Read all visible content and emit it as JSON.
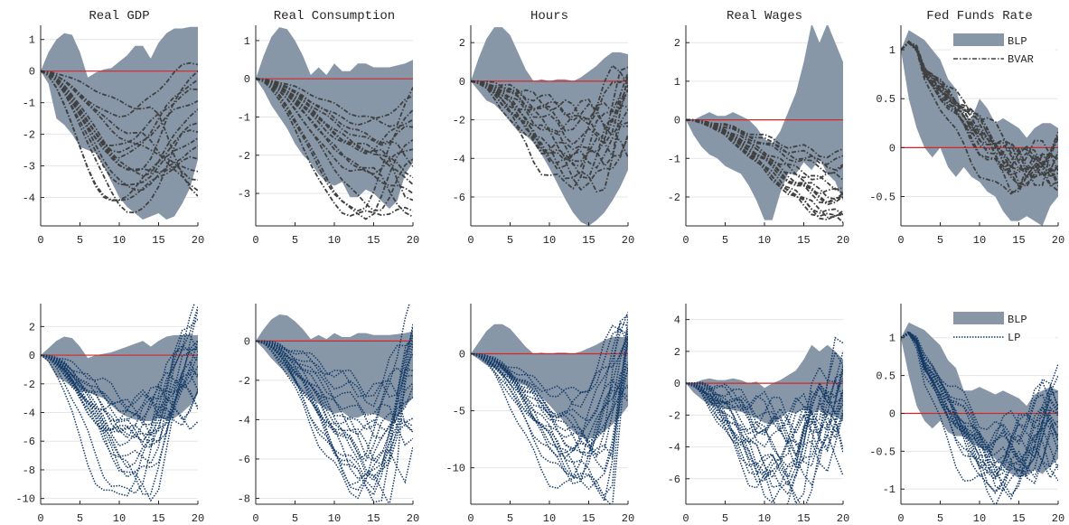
{
  "colors": {
    "band": "#8797a8",
    "top_lines": "#404040",
    "bottom_lines": "#153a66",
    "zero_line": "#d62728",
    "grid": "#e6e6e6",
    "axis": "#262626"
  },
  "chart_data": [
    {
      "type": "line",
      "row": "top",
      "title": "Real GDP",
      "x": [
        0,
        1,
        2,
        3,
        4,
        5,
        6,
        7,
        8,
        9,
        10,
        11,
        12,
        13,
        14,
        15,
        16,
        17,
        18,
        19,
        20
      ],
      "xlim": [
        0,
        20
      ],
      "ylim": [
        -4.9,
        1.45
      ],
      "xticks": [
        0,
        5,
        10,
        15,
        20
      ],
      "yticks": [
        1,
        0,
        -1,
        -2,
        -3,
        -4
      ],
      "ytick_labels": [
        "1",
        "0",
        "-1",
        "-2",
        "-3",
        "-4"
      ],
      "grid": "horizontal",
      "band": {
        "upper": [
          0,
          0.6,
          1.0,
          1.2,
          1.15,
          0.6,
          -0.2,
          -0.05,
          0.05,
          0.1,
          0.3,
          0.5,
          0.8,
          0.8,
          0.4,
          0.9,
          1.2,
          1.35,
          1.35,
          1.4,
          1.4
        ],
        "lower": [
          0,
          -0.4,
          -1.5,
          -1.7,
          -2.0,
          -2.4,
          -2.5,
          -2.6,
          -3.0,
          -3.5,
          -4.0,
          -4.3,
          -4.5,
          -4.7,
          -4.6,
          -4.5,
          -4.7,
          -4.6,
          -4.2,
          -3.7,
          -2.8
        ]
      },
      "lines": {
        "n": 15,
        "end_min": -4.0,
        "end_max": 0.3,
        "trough": -4.8,
        "trough_x": 11,
        "amp": 0.1
      }
    },
    {
      "type": "line",
      "row": "top",
      "title": "Real Consumption",
      "x": [
        0,
        1,
        2,
        3,
        4,
        5,
        6,
        7,
        8,
        9,
        10,
        11,
        12,
        13,
        14,
        15,
        16,
        17,
        18,
        19,
        20
      ],
      "xlim": [
        0,
        20
      ],
      "ylim": [
        -3.85,
        1.4
      ],
      "xticks": [
        0,
        5,
        10,
        15,
        20
      ],
      "yticks": [
        1,
        0,
        -1,
        -2,
        -3
      ],
      "ytick_labels": [
        "1",
        "0",
        "-1",
        "-2",
        "-3"
      ],
      "grid": "horizontal",
      "band": {
        "upper": [
          0,
          0.6,
          1.1,
          1.35,
          1.3,
          1.0,
          0.6,
          0.1,
          0.3,
          0.1,
          0.4,
          0.2,
          0.2,
          0.4,
          0.4,
          0.3,
          0.3,
          0.3,
          0.35,
          0.4,
          0.5
        ],
        "lower": [
          0,
          -0.3,
          -0.7,
          -1.0,
          -1.3,
          -1.7,
          -2.0,
          -2.2,
          -2.5,
          -2.7,
          -2.8,
          -2.7,
          -3.1,
          -3.1,
          -2.9,
          -3.0,
          -3.2,
          -3.4,
          -3.2,
          -2.5,
          -2.2
        ]
      },
      "lines": {
        "n": 15,
        "end_min": -3.7,
        "end_max": -0.3,
        "trough": -3.8,
        "trough_x": 15,
        "amp": 0.1
      }
    },
    {
      "type": "line",
      "row": "top",
      "title": "Hours",
      "x": [
        0,
        1,
        2,
        3,
        4,
        5,
        6,
        7,
        8,
        9,
        10,
        11,
        12,
        13,
        14,
        15,
        16,
        17,
        18,
        19,
        20
      ],
      "xlim": [
        0,
        20
      ],
      "ylim": [
        -7.5,
        2.9
      ],
      "xticks": [
        0,
        5,
        10,
        15,
        20
      ],
      "yticks": [
        2,
        0,
        -2,
        -4,
        -6
      ],
      "ytick_labels": [
        "2",
        "0",
        "-2",
        "-4",
        "-6"
      ],
      "grid": "horizontal",
      "band": {
        "upper": [
          0,
          1.2,
          2.2,
          2.8,
          2.8,
          2.4,
          1.5,
          0.6,
          0,
          0.1,
          0,
          0.1,
          0.1,
          0,
          0.2,
          0.5,
          0.8,
          1.2,
          1.5,
          1.5,
          1.4
        ],
        "lower": [
          0,
          -0.5,
          -1.0,
          -1.2,
          -1.6,
          -2.1,
          -2.6,
          -2.8,
          -3.2,
          -3.8,
          -4.5,
          -5.3,
          -6.1,
          -6.8,
          -7.3,
          -7.5,
          -7.2,
          -6.8,
          -6.2,
          -5.5,
          -4.6
        ]
      },
      "lines": {
        "n": 15,
        "end_min": -3.5,
        "end_max": 0.9,
        "trough": -5.8,
        "trough_x": 14,
        "amp": 0.8
      }
    },
    {
      "type": "line",
      "row": "top",
      "title": "Real Wages",
      "x": [
        0,
        1,
        2,
        3,
        4,
        5,
        6,
        7,
        8,
        9,
        10,
        11,
        12,
        13,
        14,
        15,
        16,
        17,
        18,
        19,
        20
      ],
      "xlim": [
        0,
        20
      ],
      "ylim": [
        -2.75,
        2.45
      ],
      "xticks": [
        0,
        5,
        10,
        15,
        20
      ],
      "yticks": [
        2,
        1,
        0,
        -1,
        -2
      ],
      "ytick_labels": [
        "2",
        "1",
        "0",
        "-1",
        "-2"
      ],
      "grid": "horizontal",
      "band": {
        "upper": [
          0,
          0,
          0.1,
          0.2,
          0.1,
          0.1,
          0.2,
          0.1,
          0,
          -0.2,
          -0.5,
          -0.6,
          -0.3,
          0.2,
          0.7,
          1.5,
          2.5,
          2.0,
          2.5,
          2.0,
          1.5
        ],
        "lower": [
          0,
          -0.4,
          -0.7,
          -0.9,
          -1.0,
          -1.2,
          -1.3,
          -1.4,
          -1.7,
          -2.1,
          -2.6,
          -2.6,
          -1.9,
          -1.4,
          -1.4,
          -1.1,
          -1.3,
          -1.0,
          -1.4,
          -1.6,
          -2.1
        ]
      },
      "lines": {
        "n": 15,
        "end_min": -2.7,
        "end_max": 0.05,
        "trough": -2.7,
        "trough_x": 20,
        "amp": 0.15
      }
    },
    {
      "type": "line",
      "row": "top",
      "title": "Fed Funds Rate",
      "x": [
        0,
        1,
        2,
        3,
        4,
        5,
        6,
        7,
        8,
        9,
        10,
        11,
        12,
        13,
        14,
        15,
        16,
        17,
        18,
        19,
        20
      ],
      "xlim": [
        0,
        20
      ],
      "ylim": [
        -0.8,
        1.25
      ],
      "xticks": [
        0,
        5,
        10,
        15,
        20
      ],
      "yticks": [
        1,
        0.5,
        0,
        -0.5
      ],
      "ytick_labels": [
        "1",
        "0.5",
        "0",
        "-0.5"
      ],
      "grid": "horizontal",
      "band": {
        "upper": [
          1.0,
          1.2,
          1.15,
          1.1,
          1.0,
          0.9,
          0.7,
          0.6,
          0.3,
          0.3,
          0.5,
          0.4,
          0.25,
          0.3,
          0.25,
          0.2,
          0.1,
          0.2,
          0.25,
          0.25,
          0.2
        ],
        "lower": [
          1.0,
          0.5,
          0.2,
          0,
          -0.1,
          0,
          -0.2,
          -0.3,
          -0.2,
          -0.3,
          -0.35,
          -0.45,
          -0.5,
          -0.65,
          -0.75,
          -0.75,
          -0.7,
          -0.75,
          -0.8,
          -0.6,
          -0.5
        ]
      },
      "legend": {
        "position": "top-right",
        "entries": [
          "BLP",
          "BVAR"
        ]
      },
      "lines": {
        "n": 15,
        "end_min": -0.3,
        "end_max": 0.05,
        "trough": -0.45,
        "trough_x": 15,
        "start": 1.0,
        "amp": 0.15
      }
    },
    {
      "type": "line",
      "row": "bottom",
      "title": "",
      "x": [
        0,
        1,
        2,
        3,
        4,
        5,
        6,
        7,
        8,
        9,
        10,
        11,
        12,
        13,
        14,
        15,
        16,
        17,
        18,
        19,
        20
      ],
      "xlim": [
        0,
        20
      ],
      "ylim": [
        -10.4,
        3.6
      ],
      "xticks": [
        0,
        5,
        10,
        15,
        20
      ],
      "yticks": [
        2,
        0,
        -2,
        -4,
        -6,
        -8,
        -10
      ],
      "ytick_labels": [
        "2",
        "0",
        "-2",
        "-4",
        "-6",
        "-8",
        "-10"
      ],
      "grid": "horizontal",
      "band": {
        "upper": [
          0,
          0.5,
          1.0,
          1.3,
          1.2,
          0.6,
          -0.2,
          0,
          0.1,
          0.2,
          0.4,
          0.6,
          0.8,
          1.0,
          0.6,
          1.0,
          1.3,
          1.4,
          1.4,
          1.4,
          1.4
        ],
        "lower": [
          0,
          -0.5,
          -1.5,
          -1.8,
          -2.2,
          -2.5,
          -2.6,
          -2.8,
          -3.0,
          -3.5,
          -4.0,
          -4.3,
          -4.5,
          -4.6,
          -4.6,
          -4.4,
          -4.5,
          -4.4,
          -4.0,
          -3.5,
          -2.7
        ]
      },
      "lines": {
        "n": 20,
        "end_min": -4.0,
        "end_max": 3.5,
        "trough": -10.0,
        "trough_x": 12,
        "amp": 1.2
      }
    },
    {
      "type": "line",
      "row": "bottom",
      "title": "",
      "x": [
        0,
        1,
        2,
        3,
        4,
        5,
        6,
        7,
        8,
        9,
        10,
        11,
        12,
        13,
        14,
        15,
        16,
        17,
        18,
        19,
        20
      ],
      "xlim": [
        0,
        20
      ],
      "ylim": [
        -8.3,
        1.9
      ],
      "xticks": [
        0,
        5,
        10,
        15,
        20
      ],
      "yticks": [
        0,
        -2,
        -4,
        -6,
        -8
      ],
      "ytick_labels": [
        "0",
        "-2",
        "-4",
        "-6",
        "-8"
      ],
      "grid": "horizontal",
      "band": {
        "upper": [
          0,
          0.6,
          1.1,
          1.35,
          1.3,
          1.0,
          0.6,
          0.1,
          0.3,
          0.1,
          0.4,
          0.2,
          0.2,
          0.4,
          0.4,
          0.3,
          0.3,
          0.3,
          0.35,
          0.4,
          0.5
        ],
        "lower": [
          0,
          -0.4,
          -0.9,
          -1.3,
          -1.7,
          -2.2,
          -2.6,
          -2.9,
          -3.2,
          -3.5,
          -3.7,
          -3.6,
          -3.9,
          -3.9,
          -3.7,
          -3.7,
          -3.9,
          -4.1,
          -3.9,
          -3.3,
          -2.9
        ]
      },
      "lines": {
        "n": 20,
        "end_min": -5.0,
        "end_max": 1.8,
        "trough": -8.0,
        "trough_x": 16,
        "amp": 0.8
      }
    },
    {
      "type": "line",
      "row": "bottom",
      "title": "",
      "x": [
        0,
        1,
        2,
        3,
        4,
        5,
        6,
        7,
        8,
        9,
        10,
        11,
        12,
        13,
        14,
        15,
        16,
        17,
        18,
        19,
        20
      ],
      "xlim": [
        0,
        20
      ],
      "ylim": [
        -13.2,
        4.4
      ],
      "xticks": [
        0,
        5,
        10,
        15,
        20
      ],
      "yticks": [
        0,
        -5,
        -10
      ],
      "ytick_labels": [
        "0",
        "-5",
        "-10"
      ],
      "grid": "horizontal",
      "band": {
        "upper": [
          0,
          1.0,
          2.0,
          2.6,
          2.6,
          2.2,
          1.4,
          0.6,
          0,
          0.1,
          0,
          0.1,
          0.1,
          0,
          0.2,
          0.5,
          0.8,
          1.2,
          1.5,
          1.5,
          1.4
        ],
        "lower": [
          0,
          -0.5,
          -1.0,
          -1.2,
          -1.6,
          -2.1,
          -2.6,
          -2.8,
          -3.2,
          -3.8,
          -4.5,
          -5.3,
          -6.1,
          -6.8,
          -7.3,
          -7.5,
          -7.2,
          -6.8,
          -6.2,
          -5.5,
          -4.6
        ]
      },
      "lines": {
        "n": 20,
        "end_min": -3.0,
        "end_max": 4.0,
        "trough": -12.8,
        "trough_x": 15,
        "amp": 1.2
      }
    },
    {
      "type": "line",
      "row": "bottom",
      "title": "",
      "x": [
        0,
        1,
        2,
        3,
        4,
        5,
        6,
        7,
        8,
        9,
        10,
        11,
        12,
        13,
        14,
        15,
        16,
        17,
        18,
        19,
        20
      ],
      "xlim": [
        0,
        20
      ],
      "ylim": [
        -7.6,
        5.0
      ],
      "xticks": [
        0,
        5,
        10,
        15,
        20
      ],
      "yticks": [
        4,
        2,
        0,
        -2,
        -4,
        -6
      ],
      "ytick_labels": [
        "4",
        "2",
        "0",
        "-2",
        "-4",
        "-6"
      ],
      "grid": "horizontal",
      "band": {
        "upper": [
          0,
          0,
          0.2,
          0.3,
          0.2,
          0.2,
          0.3,
          0.2,
          0,
          0.1,
          -0.3,
          0,
          0.2,
          0.5,
          0.8,
          1.5,
          2.4,
          2.0,
          2.4,
          2.0,
          1.5
        ],
        "lower": [
          0,
          -0.6,
          -1.0,
          -1.4,
          -1.5,
          -1.6,
          -1.7,
          -1.8,
          -2.0,
          -2.2,
          -2.5,
          -2.6,
          -2.2,
          -1.8,
          -1.9,
          -1.6,
          -1.9,
          -1.7,
          -2.0,
          -2.1,
          -2.4
        ]
      },
      "lines": {
        "n": 20,
        "end_min": -4.0,
        "end_max": 2.0,
        "trough": -7.5,
        "trough_x": 12,
        "amp": 1.8
      }
    },
    {
      "type": "line",
      "row": "bottom",
      "title": "",
      "x": [
        0,
        1,
        2,
        3,
        4,
        5,
        6,
        7,
        8,
        9,
        10,
        11,
        12,
        13,
        14,
        15,
        16,
        17,
        18,
        19,
        20
      ],
      "xlim": [
        0,
        20
      ],
      "ylim": [
        -1.2,
        1.45
      ],
      "xticks": [
        0,
        5,
        10,
        15,
        20
      ],
      "yticks": [
        1,
        0.5,
        0,
        -0.5,
        -1
      ],
      "ytick_labels": [
        "1",
        "0.5",
        "0",
        "-0.5",
        "-1"
      ],
      "grid": "horizontal",
      "band": {
        "upper": [
          1.0,
          1.2,
          1.15,
          1.1,
          1.0,
          0.9,
          0.7,
          0.6,
          0.3,
          0.3,
          0.35,
          0.3,
          0.25,
          0.3,
          0.25,
          0.2,
          0.1,
          0.25,
          0.3,
          0.35,
          0.3
        ],
        "lower": [
          1.0,
          0.5,
          0.1,
          -0.1,
          -0.2,
          -0.1,
          -0.25,
          -0.3,
          -0.3,
          -0.4,
          -0.45,
          -0.5,
          -0.6,
          -0.7,
          -0.8,
          -0.85,
          -0.8,
          -0.75,
          -0.8,
          -0.7,
          -0.6
        ]
      },
      "legend": {
        "position": "top-right",
        "entries": [
          "BLP",
          "LP"
        ]
      },
      "lines": {
        "n": 20,
        "end_min": -0.6,
        "end_max": 0.35,
        "trough": -1.1,
        "trough_x": 12,
        "start": 1.0,
        "amp": 0.3
      }
    }
  ]
}
